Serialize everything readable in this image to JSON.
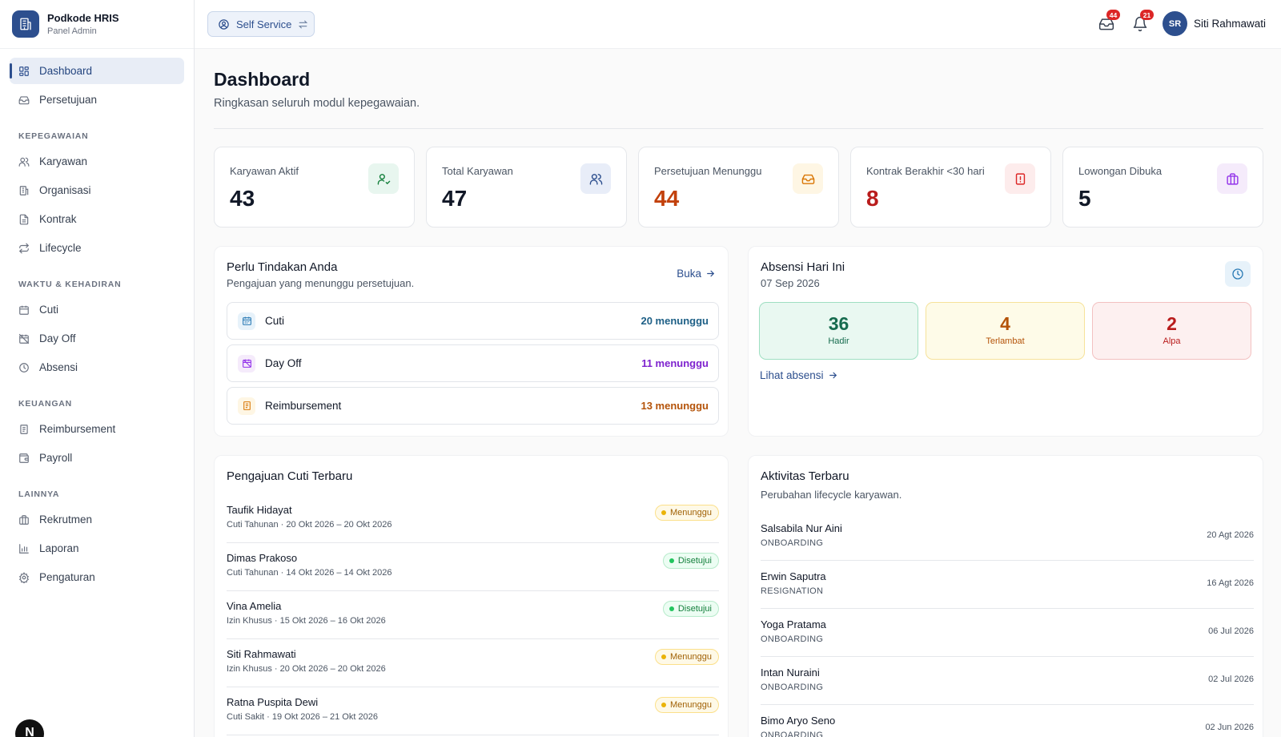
{
  "brand": {
    "name": "Podkode HRIS",
    "subtitle": "Panel Admin"
  },
  "sidebar": {
    "top_items": [
      {
        "label": "Dashboard",
        "icon": "grid-icon",
        "active": true
      },
      {
        "label": "Persetujuan",
        "icon": "inbox-icon"
      }
    ],
    "sections": [
      {
        "title": "KEPEGAWAIAN",
        "items": [
          {
            "label": "Karyawan",
            "icon": "users-icon"
          },
          {
            "label": "Organisasi",
            "icon": "building-icon"
          },
          {
            "label": "Kontrak",
            "icon": "file-icon"
          },
          {
            "label": "Lifecycle",
            "icon": "repeat-icon"
          }
        ]
      },
      {
        "title": "WAKTU & KEHADIRAN",
        "items": [
          {
            "label": "Cuti",
            "icon": "calendar-icon"
          },
          {
            "label": "Day Off",
            "icon": "calendar-off-icon"
          },
          {
            "label": "Absensi",
            "icon": "clock-icon"
          }
        ]
      },
      {
        "title": "KEUANGAN",
        "items": [
          {
            "label": "Reimbursement",
            "icon": "receipt-icon"
          },
          {
            "label": "Payroll",
            "icon": "wallet-icon"
          }
        ]
      },
      {
        "title": "LAINNYA",
        "items": [
          {
            "label": "Rekrutmen",
            "icon": "briefcase-icon"
          },
          {
            "label": "Laporan",
            "icon": "bar-chart-icon"
          },
          {
            "label": "Pengaturan",
            "icon": "gear-icon"
          }
        ]
      }
    ],
    "fab_letter": "N"
  },
  "topbar": {
    "self_service_label": "Self Service",
    "inbox_badge": "44",
    "bell_badge": "21",
    "avatar_initials": "SR",
    "user_name": "Siti Rahmawati"
  },
  "page": {
    "title": "Dashboard",
    "subtitle": "Ringkasan seluruh modul kepegawaian."
  },
  "stats": [
    {
      "label": "Karyawan Aktif",
      "value": "43",
      "icon": "user-check-icon",
      "value_color": "#111827",
      "icon_bg": "#e8f6ef",
      "icon_color": "#15803d"
    },
    {
      "label": "Total Karyawan",
      "value": "47",
      "icon": "users-icon",
      "value_color": "#111827",
      "icon_bg": "#e8edf8",
      "icon_color": "#2d4f8e"
    },
    {
      "label": "Persetujuan Menunggu",
      "value": "44",
      "icon": "inbox-icon",
      "value_color": "#c2410c",
      "icon_bg": "#fef6e4",
      "icon_color": "#d97706"
    },
    {
      "label": "Kontrak Berakhir <30 hari",
      "value": "8",
      "icon": "file-alert-icon",
      "value_color": "#b91c1c",
      "icon_bg": "#fdecec",
      "icon_color": "#dc2626"
    },
    {
      "label": "Lowongan Dibuka",
      "value": "5",
      "icon": "briefcase-icon",
      "value_color": "#111827",
      "icon_bg": "#f5ebfb",
      "icon_color": "#9333ea"
    }
  ],
  "pending": {
    "title": "Perlu Tindakan Anda",
    "subtitle": "Pengajuan yang menunggu persetujuan.",
    "link_label": "Buka",
    "rows": [
      {
        "label": "Cuti",
        "count": "20 menunggu",
        "icon": "calendar-icon",
        "color": "#1d5f86",
        "icon_bg": "#e7f2fa",
        "icon_color": "#2b7bb5"
      },
      {
        "label": "Day Off",
        "count": "11 menunggu",
        "icon": "calendar-off-icon",
        "color": "#7e22ce",
        "icon_bg": "#f5ebfb",
        "icon_color": "#9333ea"
      },
      {
        "label": "Reimbursement",
        "count": "13 menunggu",
        "icon": "receipt-icon",
        "color": "#b45309",
        "icon_bg": "#fef6e4",
        "icon_color": "#d97706"
      }
    ]
  },
  "attendance": {
    "title": "Absensi Hari Ini",
    "date": "07 Sep 2026",
    "boxes": [
      {
        "value": "36",
        "label": "Hadir",
        "bg": "#e9f8f1",
        "border": "#9fdfc2",
        "color": "#166b4e"
      },
      {
        "value": "4",
        "label": "Terlambat",
        "bg": "#fefbe8",
        "border": "#f6e29a",
        "color": "#b45309"
      },
      {
        "value": "2",
        "label": "Alpa",
        "bg": "#fdf0f0",
        "border": "#f3c1c1",
        "color": "#b91c1c"
      }
    ],
    "link_label": "Lihat absensi"
  },
  "leave_requests": {
    "title": "Pengajuan Cuti Terbaru",
    "rows": [
      {
        "name": "Taufik Hidayat",
        "detail": "Cuti Tahunan · 20 Okt 2026 – 20 Okt 2026",
        "status": "Menunggu",
        "kind": "wait"
      },
      {
        "name": "Dimas Prakoso",
        "detail": "Cuti Tahunan · 14 Okt 2026 – 14 Okt 2026",
        "status": "Disetujui",
        "kind": "ok"
      },
      {
        "name": "Vina Amelia",
        "detail": "Izin Khusus · 15 Okt 2026 – 16 Okt 2026",
        "status": "Disetujui",
        "kind": "ok"
      },
      {
        "name": "Siti Rahmawati",
        "detail": "Izin Khusus · 20 Okt 2026 – 20 Okt 2026",
        "status": "Menunggu",
        "kind": "wait"
      },
      {
        "name": "Ratna Puspita Dewi",
        "detail": "Cuti Sakit · 19 Okt 2026 – 21 Okt 2026",
        "status": "Menunggu",
        "kind": "wait"
      }
    ]
  },
  "activity": {
    "title": "Aktivitas Terbaru",
    "subtitle": "Perubahan lifecycle karyawan.",
    "rows": [
      {
        "name": "Salsabila Nur Aini",
        "type": "ONBOARDING",
        "date": "20 Agt 2026"
      },
      {
        "name": "Erwin Saputra",
        "type": "RESIGNATION",
        "date": "16 Agt 2026"
      },
      {
        "name": "Yoga Pratama",
        "type": "ONBOARDING",
        "date": "06 Jul 2026"
      },
      {
        "name": "Intan Nuraini",
        "type": "ONBOARDING",
        "date": "02 Jul 2026"
      },
      {
        "name": "Bimo Aryo Seno",
        "type": "ONBOARDING",
        "date": "02 Jun 2026"
      }
    ]
  }
}
